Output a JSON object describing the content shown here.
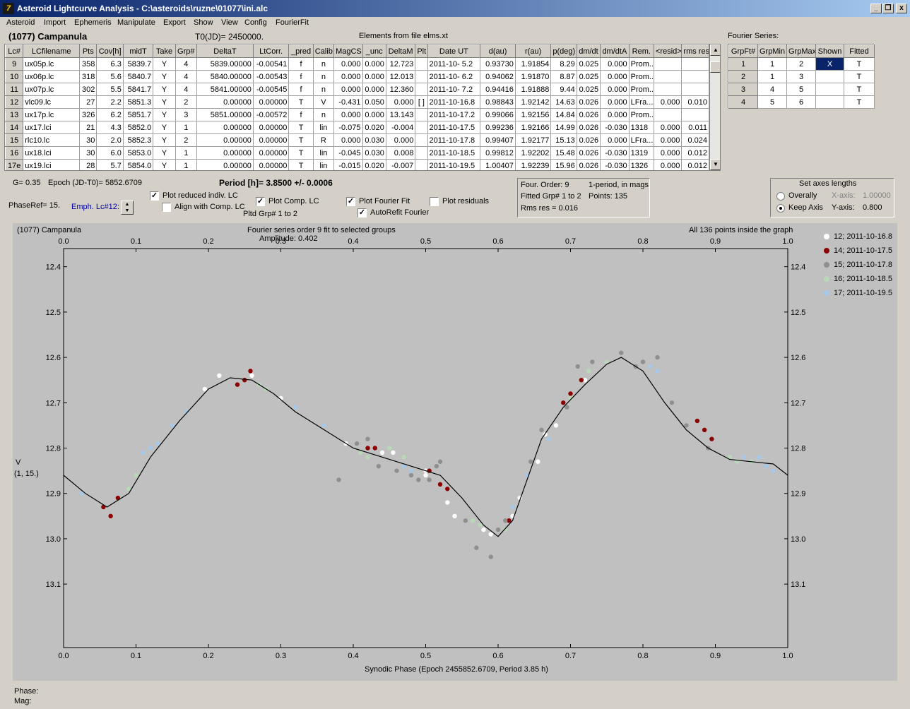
{
  "app": {
    "title": "Asteroid Lightcurve Analysis - C:\\asteroids\\ruzne\\01077\\ini.alc",
    "icon": "app-icon",
    "min": "_",
    "restore": "❐",
    "close": "x"
  },
  "menu": [
    "Asteroid",
    "Import",
    "Ephemeris",
    "Manipulate",
    "Export",
    "Show",
    "View",
    "Config",
    "FourierFit"
  ],
  "header": {
    "object": "(1077) Campanula",
    "t0": "T0(JD)= 2450000.",
    "elements": "Elements from file elms.xt"
  },
  "lc_table": {
    "columns": [
      "Lc#",
      "LCfilename",
      "Pts",
      "Cov[h]",
      "midT",
      "Take",
      "Grp#",
      "DeltaT",
      "LtCorr.",
      "_pred",
      "Calib.",
      "MagCS",
      "_unc",
      "DeltaM",
      "Plt",
      "Date UT",
      "d(au)",
      "r(au)",
      "p(deg)",
      "dm/dt",
      "dm/dtA",
      "Rem.",
      "<resid>",
      "rms res"
    ],
    "rows": [
      [
        "9",
        "ux05p.lc",
        "358",
        "6.3",
        "5839.7",
        "Y",
        "4",
        "5839.00000",
        "-0.00541",
        "f",
        "n",
        "0.000",
        "0.000",
        "12.723",
        "",
        "2011-10- 5.2",
        "0.93730",
        "1.91854",
        "8.29",
        "0.025",
        "0.000",
        "Prom...",
        "",
        ""
      ],
      [
        "10",
        "ux06p.lc",
        "318",
        "5.6",
        "5840.7",
        "Y",
        "4",
        "5840.00000",
        "-0.00543",
        "f",
        "n",
        "0.000",
        "0.000",
        "12.013",
        "",
        "2011-10- 6.2",
        "0.94062",
        "1.91870",
        "8.87",
        "0.025",
        "0.000",
        "Prom...",
        "",
        ""
      ],
      [
        "11",
        "ux07p.lc",
        "302",
        "5.5",
        "5841.7",
        "Y",
        "4",
        "5841.00000",
        "-0.00545",
        "f",
        "n",
        "0.000",
        "0.000",
        "12.360",
        "",
        "2011-10- 7.2",
        "0.94416",
        "1.91888",
        "9.44",
        "0.025",
        "0.000",
        "Prom...",
        "",
        ""
      ],
      [
        "12",
        "vlc09.lc",
        "27",
        "2.2",
        "5851.3",
        "Y",
        "2",
        "0.00000",
        "0.00000",
        "T",
        "V",
        "-0.431",
        "0.050",
        "0.000",
        "[ ]",
        "2011-10-16.8",
        "0.98843",
        "1.92142",
        "14.63",
        "0.026",
        "0.000",
        "LFra...",
        "0.000",
        "0.010"
      ],
      [
        "13",
        "ux17p.lc",
        "326",
        "6.2",
        "5851.7",
        "Y",
        "3",
        "5851.00000",
        "-0.00572",
        "f",
        "n",
        "0.000",
        "0.000",
        "13.143",
        "",
        "2011-10-17.2",
        "0.99066",
        "1.92156",
        "14.84",
        "0.026",
        "0.000",
        "Prom...",
        "",
        ""
      ],
      [
        "14",
        "ux17.lci",
        "21",
        "4.3",
        "5852.0",
        "Y",
        "1",
        "0.00000",
        "0.00000",
        "T",
        "lin",
        "-0.075",
        "0.020",
        "-0.004",
        "",
        "2011-10-17.5",
        "0.99236",
        "1.92166",
        "14.99",
        "0.026",
        "-0.030",
        "1318",
        "0.000",
        "0.011"
      ],
      [
        "15",
        "rlc10.lc",
        "30",
        "2.0",
        "5852.3",
        "Y",
        "2",
        "0.00000",
        "0.00000",
        "T",
        "R",
        "0.000",
        "0.030",
        "0.000",
        "",
        "2011-10-17.8",
        "0.99407",
        "1.92177",
        "15.13",
        "0.026",
        "0.000",
        "LFra...",
        "0.000",
        "0.024"
      ],
      [
        "16",
        "ux18.lci",
        "30",
        "6.0",
        "5853.0",
        "Y",
        "1",
        "0.00000",
        "0.00000",
        "T",
        "lin",
        "-0.045",
        "0.030",
        "0.008",
        "",
        "2011-10-18.5",
        "0.99812",
        "1.92202",
        "15.48",
        "0.026",
        "-0.030",
        "1319",
        "0.000",
        "0.012"
      ],
      [
        "17e",
        "ux19.lci",
        "28",
        "5.7",
        "5854.0",
        "Y",
        "1",
        "0.00000",
        "0.00000",
        "T",
        "lin",
        "-0.015",
        "0.020",
        "-0.007",
        "",
        "2011-10-19.5",
        "1.00407",
        "1.92239",
        "15.96",
        "0.026",
        "-0.030",
        "1326",
        "0.000",
        "0.012"
      ]
    ]
  },
  "fourier_table": {
    "title": "Fourier Series:",
    "columns": [
      "GrpFt#",
      "GrpMin",
      "GrpMax",
      "Shown",
      "Fitted"
    ],
    "rows": [
      [
        "1",
        "1",
        "2",
        "X",
        "T"
      ],
      [
        "2",
        "1",
        "3",
        "",
        "T"
      ],
      [
        "3",
        "4",
        "5",
        "",
        "T"
      ],
      [
        "4",
        "5",
        "6",
        "",
        "T"
      ]
    ]
  },
  "info": {
    "g": "G= 0.35",
    "epoch": "Epoch (JD-T0)= 5852.6709",
    "period": "Period [h]= 3.8500 +/- 0.0006",
    "phaseref": "PhaseRef= 15.",
    "emph": "Emph. Lc#12:"
  },
  "options": {
    "plot_reduced": "Plot reduced indiv. LC",
    "align": "Align with Comp. LC",
    "plot_comp": "Plot Comp. LC",
    "pltd_grp": "Pltd Grp#  1   to   2",
    "plot_fourier": "Plot Fourier Fit",
    "autorefit": "AutoRefit Fourier",
    "plot_resid": "Plot residuals"
  },
  "fit_info": {
    "order": "Four. Order:  9",
    "period_mode": "1-period, in mags",
    "fitted": "Fitted Grp# 1 to 2",
    "points": "Points: 135",
    "rms": "Rms res      = 0.016"
  },
  "axes_box": {
    "title": "Set axes lengths",
    "overally": "Overally",
    "keep": "Keep Axis",
    "xaxis_label": "X-axis:",
    "xaxis_val": "1.00000",
    "yaxis_label": "Y-axis:",
    "yaxis_val": "0.800"
  },
  "bottom": {
    "phase": "Phase:",
    "mag": "Mag:"
  },
  "chart_data": {
    "type": "scatter",
    "title": "Fourier series order 9 fit to selected groups",
    "subtitle": "Amplitude: 0.402",
    "corner_left": "(1077) Campanula",
    "corner_right": "All 136 points inside the graph",
    "xlabel": "Synodic Phase (Epoch 2455852.6709, Period 3.85 h)",
    "ylabel": "V",
    "ylabel2": "(1, 15.)",
    "xlim": [
      0,
      1
    ],
    "ylim": [
      13.24,
      12.36
    ],
    "xticks": [
      "0.0",
      "0.1",
      "0.2",
      "0.3",
      "0.4",
      "0.5",
      "0.6",
      "0.7",
      "0.8",
      "0.9",
      "1.0"
    ],
    "yticks": [
      "12.4",
      "12.5",
      "12.6",
      "12.7",
      "12.8",
      "12.9",
      "13.0",
      "13.1"
    ],
    "legend_position": "right",
    "series": [
      {
        "name": "12; 2011-10-16.8",
        "color": "#ffffff",
        "points": [
          [
            0.215,
            12.64
          ],
          [
            0.195,
            12.67
          ],
          [
            0.26,
            12.64
          ],
          [
            0.3,
            12.69
          ],
          [
            0.39,
            12.79
          ],
          [
            0.44,
            12.81
          ],
          [
            0.455,
            12.81
          ],
          [
            0.5,
            12.85
          ],
          [
            0.53,
            12.92
          ],
          [
            0.54,
            12.95
          ],
          [
            0.58,
            12.98
          ],
          [
            0.59,
            12.99
          ],
          [
            0.62,
            12.95
          ],
          [
            0.63,
            12.91
          ],
          [
            0.655,
            12.83
          ],
          [
            0.665,
            12.77
          ],
          [
            0.68,
            12.75
          ],
          [
            0.72,
            12.65
          ],
          [
            0.5,
            12.86
          ]
        ]
      },
      {
        "name": "14; 2011-10-17.5",
        "color": "#8b0000",
        "points": [
          [
            0.055,
            12.93
          ],
          [
            0.065,
            12.95
          ],
          [
            0.075,
            12.91
          ],
          [
            0.24,
            12.66
          ],
          [
            0.25,
            12.65
          ],
          [
            0.258,
            12.63
          ],
          [
            0.42,
            12.8
          ],
          [
            0.43,
            12.8
          ],
          [
            0.505,
            12.85
          ],
          [
            0.52,
            12.88
          ],
          [
            0.53,
            12.89
          ],
          [
            0.615,
            12.96
          ],
          [
            0.69,
            12.7
          ],
          [
            0.7,
            12.68
          ],
          [
            0.715,
            12.65
          ],
          [
            0.875,
            12.74
          ],
          [
            0.885,
            12.76
          ],
          [
            0.895,
            12.78
          ]
        ]
      },
      {
        "name": "15; 2011-10-17.8",
        "color": "#8f8f8f",
        "points": [
          [
            0.38,
            12.87
          ],
          [
            0.405,
            12.79
          ],
          [
            0.42,
            12.78
          ],
          [
            0.435,
            12.84
          ],
          [
            0.46,
            12.85
          ],
          [
            0.48,
            12.86
          ],
          [
            0.49,
            12.87
          ],
          [
            0.505,
            12.87
          ],
          [
            0.515,
            12.84
          ],
          [
            0.52,
            12.83
          ],
          [
            0.555,
            12.96
          ],
          [
            0.57,
            13.02
          ],
          [
            0.59,
            13.04
          ],
          [
            0.6,
            12.98
          ],
          [
            0.61,
            12.96
          ],
          [
            0.645,
            12.83
          ],
          [
            0.66,
            12.76
          ],
          [
            0.695,
            12.71
          ],
          [
            0.71,
            12.62
          ],
          [
            0.73,
            12.61
          ],
          [
            0.77,
            12.59
          ],
          [
            0.79,
            12.62
          ],
          [
            0.8,
            12.61
          ],
          [
            0.82,
            12.6
          ],
          [
            0.84,
            12.7
          ],
          [
            0.86,
            12.75
          ],
          [
            0.89,
            12.8
          ]
        ]
      },
      {
        "name": "16; 2011-10-18.5",
        "color": "#b8d8b8",
        "points": [
          [
            0.09,
            12.89
          ],
          [
            0.1,
            12.86
          ],
          [
            0.27,
            12.66
          ],
          [
            0.28,
            12.67
          ],
          [
            0.41,
            12.81
          ],
          [
            0.42,
            12.82
          ],
          [
            0.45,
            12.8
          ],
          [
            0.47,
            12.82
          ],
          [
            0.565,
            12.96
          ],
          [
            0.575,
            12.97
          ],
          [
            0.61,
            12.98
          ],
          [
            0.7,
            12.69
          ],
          [
            0.725,
            12.63
          ],
          [
            0.75,
            12.61
          ],
          [
            0.92,
            12.82
          ],
          [
            0.93,
            12.83
          ],
          [
            0.95,
            12.83
          ]
        ]
      },
      {
        "name": "17; 2011-10-19.5",
        "color": "#a8c8e8",
        "points": [
          [
            0.025,
            12.9
          ],
          [
            0.11,
            12.81
          ],
          [
            0.12,
            12.8
          ],
          [
            0.13,
            12.79
          ],
          [
            0.15,
            12.75
          ],
          [
            0.17,
            12.72
          ],
          [
            0.32,
            12.71
          ],
          [
            0.36,
            12.75
          ],
          [
            0.47,
            12.84
          ],
          [
            0.48,
            12.85
          ],
          [
            0.62,
            12.93
          ],
          [
            0.64,
            12.86
          ],
          [
            0.67,
            12.78
          ],
          [
            0.81,
            12.62
          ],
          [
            0.82,
            12.63
          ],
          [
            0.94,
            12.82
          ],
          [
            0.96,
            12.82
          ],
          [
            0.97,
            12.84
          ],
          [
            0.98,
            12.85
          ]
        ]
      }
    ],
    "fit_curve": [
      [
        0,
        12.86
      ],
      [
        0.03,
        12.9
      ],
      [
        0.06,
        12.93
      ],
      [
        0.09,
        12.9
      ],
      [
        0.12,
        12.82
      ],
      [
        0.16,
        12.74
      ],
      [
        0.2,
        12.67
      ],
      [
        0.23,
        12.645
      ],
      [
        0.26,
        12.65
      ],
      [
        0.29,
        12.68
      ],
      [
        0.32,
        12.72
      ],
      [
        0.36,
        12.76
      ],
      [
        0.4,
        12.8
      ],
      [
        0.44,
        12.82
      ],
      [
        0.48,
        12.84
      ],
      [
        0.52,
        12.86
      ],
      [
        0.55,
        12.91
      ],
      [
        0.58,
        12.97
      ],
      [
        0.6,
        12.995
      ],
      [
        0.62,
        12.96
      ],
      [
        0.64,
        12.87
      ],
      [
        0.66,
        12.78
      ],
      [
        0.69,
        12.71
      ],
      [
        0.72,
        12.66
      ],
      [
        0.75,
        12.615
      ],
      [
        0.77,
        12.6
      ],
      [
        0.8,
        12.63
      ],
      [
        0.83,
        12.7
      ],
      [
        0.86,
        12.76
      ],
      [
        0.89,
        12.8
      ],
      [
        0.92,
        12.825
      ],
      [
        0.95,
        12.83
      ],
      [
        0.98,
        12.835
      ],
      [
        1.0,
        12.86
      ]
    ]
  }
}
